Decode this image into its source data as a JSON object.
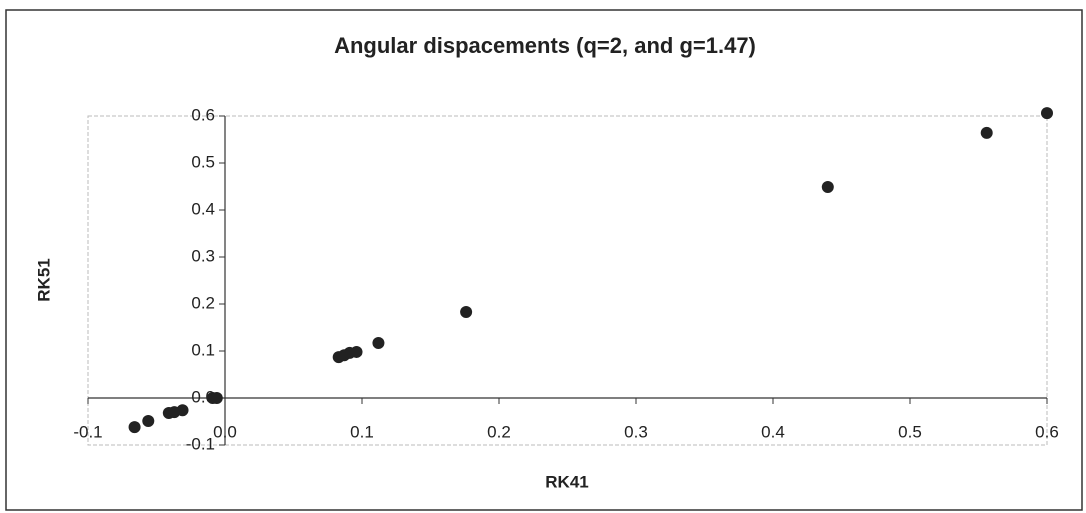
{
  "chart_data": {
    "type": "scatter",
    "title": "Angular dispacements (q=2, and g=1.47)",
    "x_label": "RK41",
    "y_label": "RK51",
    "x": [
      -0.066,
      -0.056,
      -0.041,
      -0.037,
      -0.031,
      -0.009,
      -0.006,
      0.083,
      0.087,
      0.091,
      0.096,
      0.112,
      0.176,
      0.44,
      0.556,
      0.6
    ],
    "values": [
      -0.062,
      -0.049,
      -0.032,
      -0.03,
      -0.026,
      0.0,
      0.0,
      0.087,
      0.091,
      0.096,
      0.098,
      0.117,
      0.183,
      0.449,
      0.564,
      0.606
    ],
    "color": "#222222",
    "xlim": [
      -0.1,
      0.6
    ],
    "ylim": [
      -0.1,
      0.6
    ],
    "xticks": [
      -0.1,
      {
        "value": 0,
        "label": "0.0"
      },
      0.1,
      0.2,
      0.3,
      0.4,
      0.5,
      0.6
    ],
    "yticks": [
      -0.1,
      {
        "value": 0,
        "label": "0.0"
      },
      0.1,
      0.2,
      0.3,
      0.4,
      0.5,
      0.6
    ]
  }
}
